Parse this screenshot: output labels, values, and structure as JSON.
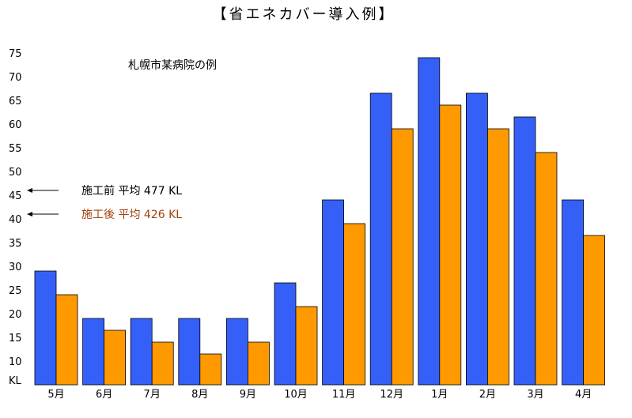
{
  "chart_data": {
    "type": "bar",
    "title": "【省エネカバー導入例】",
    "subtitle": "札幌市某病院の例",
    "xlabel": "",
    "ylabel": "",
    "y_unit_label": "KL",
    "categories": [
      "5月",
      "6月",
      "7月",
      "8月",
      "9月",
      "10月",
      "11月",
      "12月",
      "1月",
      "2月",
      "3月",
      "4月"
    ],
    "series": [
      {
        "color": "#3560f8",
        "values": [
          29,
          19,
          19,
          19,
          19,
          26.5,
          44,
          66.5,
          74,
          66.5,
          61.5,
          44
        ]
      },
      {
        "color": "#ff9900",
        "values": [
          24,
          16.5,
          14,
          11.5,
          14,
          21.5,
          39,
          59,
          64,
          59,
          54,
          36.5
        ]
      }
    ],
    "ylim": [
      5,
      78
    ],
    "yticks": [
      10,
      15,
      20,
      25,
      30,
      35,
      40,
      45,
      50,
      55,
      60,
      65,
      70,
      75
    ],
    "annotations": [
      {
        "text": "施工前 平均 477 KL",
        "y": 46,
        "color": "#000000",
        "arrow": "left"
      },
      {
        "text": "施工後 平均 426 KL",
        "y": 41,
        "color": "#a0410b",
        "arrow": "left"
      }
    ],
    "grid": false,
    "legend": "none"
  }
}
